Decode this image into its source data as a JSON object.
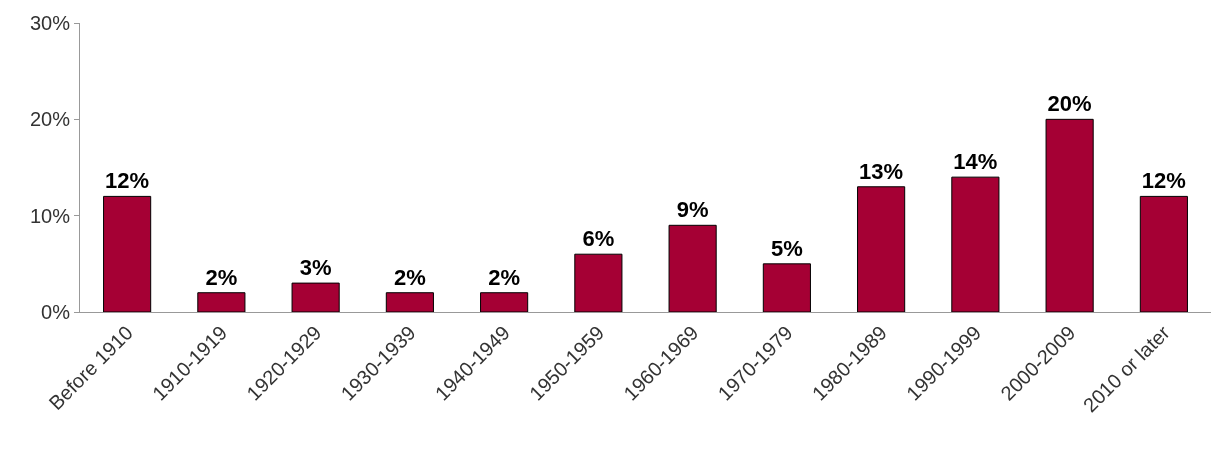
{
  "chart_data": {
    "type": "bar",
    "categories": [
      "Before 1910",
      "1910-1919",
      "1920-1929",
      "1930-1939",
      "1940-1949",
      "1950-1959",
      "1960-1969",
      "1970-1979",
      "1980-1989",
      "1990-1999",
      "2000-2009",
      "2010 or later"
    ],
    "values": [
      12,
      2,
      3,
      2,
      2,
      6,
      9,
      5,
      13,
      14,
      20,
      12
    ],
    "value_labels": [
      "12%",
      "2%",
      "3%",
      "2%",
      "2%",
      "6%",
      "9%",
      "5%",
      "13%",
      "14%",
      "20%",
      "12%"
    ],
    "color": "#a50034",
    "ylim": [
      0,
      30
    ],
    "yticks": [
      {
        "value": 0,
        "label": "0%"
      },
      {
        "value": 10,
        "label": "10%"
      },
      {
        "value": 20,
        "label": "20%"
      },
      {
        "value": 30,
        "label": "30%"
      }
    ]
  }
}
